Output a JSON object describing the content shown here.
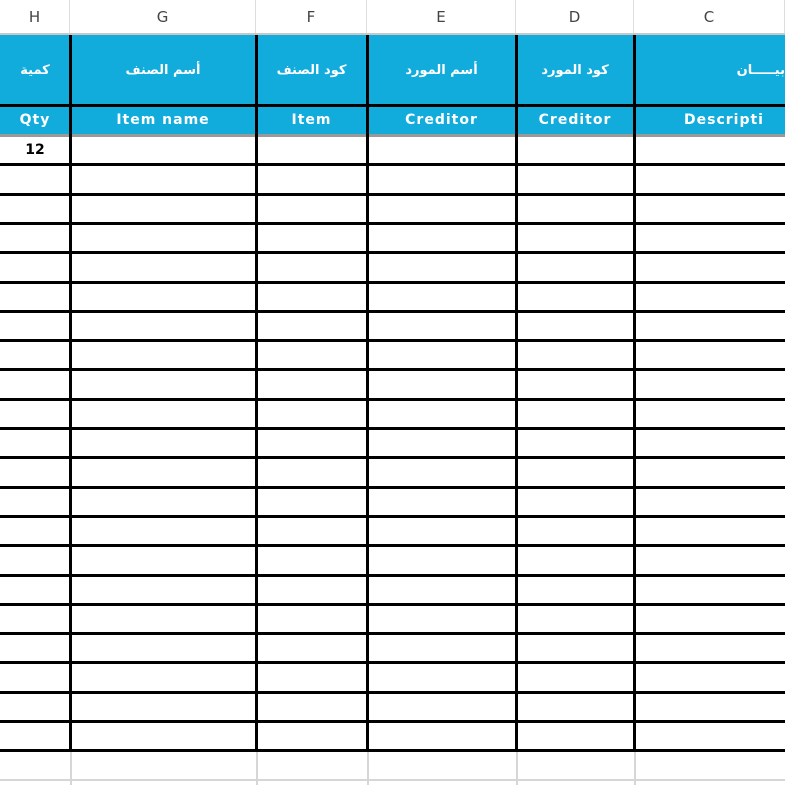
{
  "columns": [
    "H",
    "G",
    "F",
    "E",
    "D",
    "C"
  ],
  "header_arabic": [
    "كمية",
    "أسم الصنف",
    "كود الصنف",
    "أسم المورد",
    "كود المورد",
    "بيـــــان"
  ],
  "header_english": [
    "Qty",
    "Item name",
    "Item",
    "Creditor",
    "Creditor",
    "Descripti"
  ],
  "first_row_qty": "12",
  "header_color": "#12acdc",
  "data_row_count": 21
}
